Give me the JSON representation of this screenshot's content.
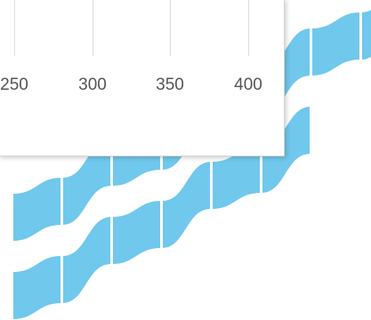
{
  "colors": {
    "tile": "#70c8ec",
    "gap": "#ffffff",
    "panel_border": "#d4d4d4",
    "tick_text": "#555555",
    "grid": "#dcdcdc"
  },
  "chart_data": {
    "type": "line",
    "x_ticks": [
      "250",
      "300",
      "350",
      "400"
    ],
    "grid": true
  }
}
